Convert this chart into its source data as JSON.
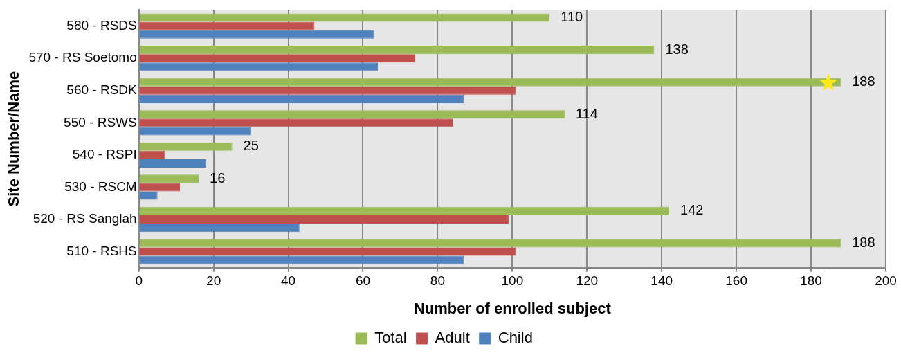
{
  "chart_data": {
    "type": "bar",
    "orientation": "horizontal",
    "xlabel": "Number of enrolled subject",
    "ylabel": "Site Number/Name",
    "categories": [
      "580 - RSDS",
      "570 - RS Soetomo",
      "560 - RSDK",
      "550 - RSWS",
      "540 - RSPI",
      "530 - RSCM",
      "520 - RS Sanglah",
      "510 - RSHS"
    ],
    "series": [
      {
        "name": "Total",
        "color": "#9bbb59",
        "values": [
          110,
          138,
          188,
          114,
          25,
          16,
          142,
          188
        ],
        "value_labels": [
          "110",
          "138",
          "188",
          "114",
          "25",
          "16",
          "142",
          "188"
        ]
      },
      {
        "name": "Adult",
        "color": "#c0504d",
        "values": [
          47,
          74,
          101,
          84,
          7,
          11,
          99,
          101
        ]
      },
      {
        "name": "Child",
        "color": "#4f81bd",
        "values": [
          63,
          64,
          87,
          30,
          18,
          5,
          43,
          87
        ]
      }
    ],
    "xlim": [
      0,
      200
    ],
    "xticks": [
      0,
      20,
      40,
      60,
      80,
      100,
      120,
      140,
      160,
      180,
      200
    ],
    "grid": "x",
    "legend": "bottom"
  }
}
